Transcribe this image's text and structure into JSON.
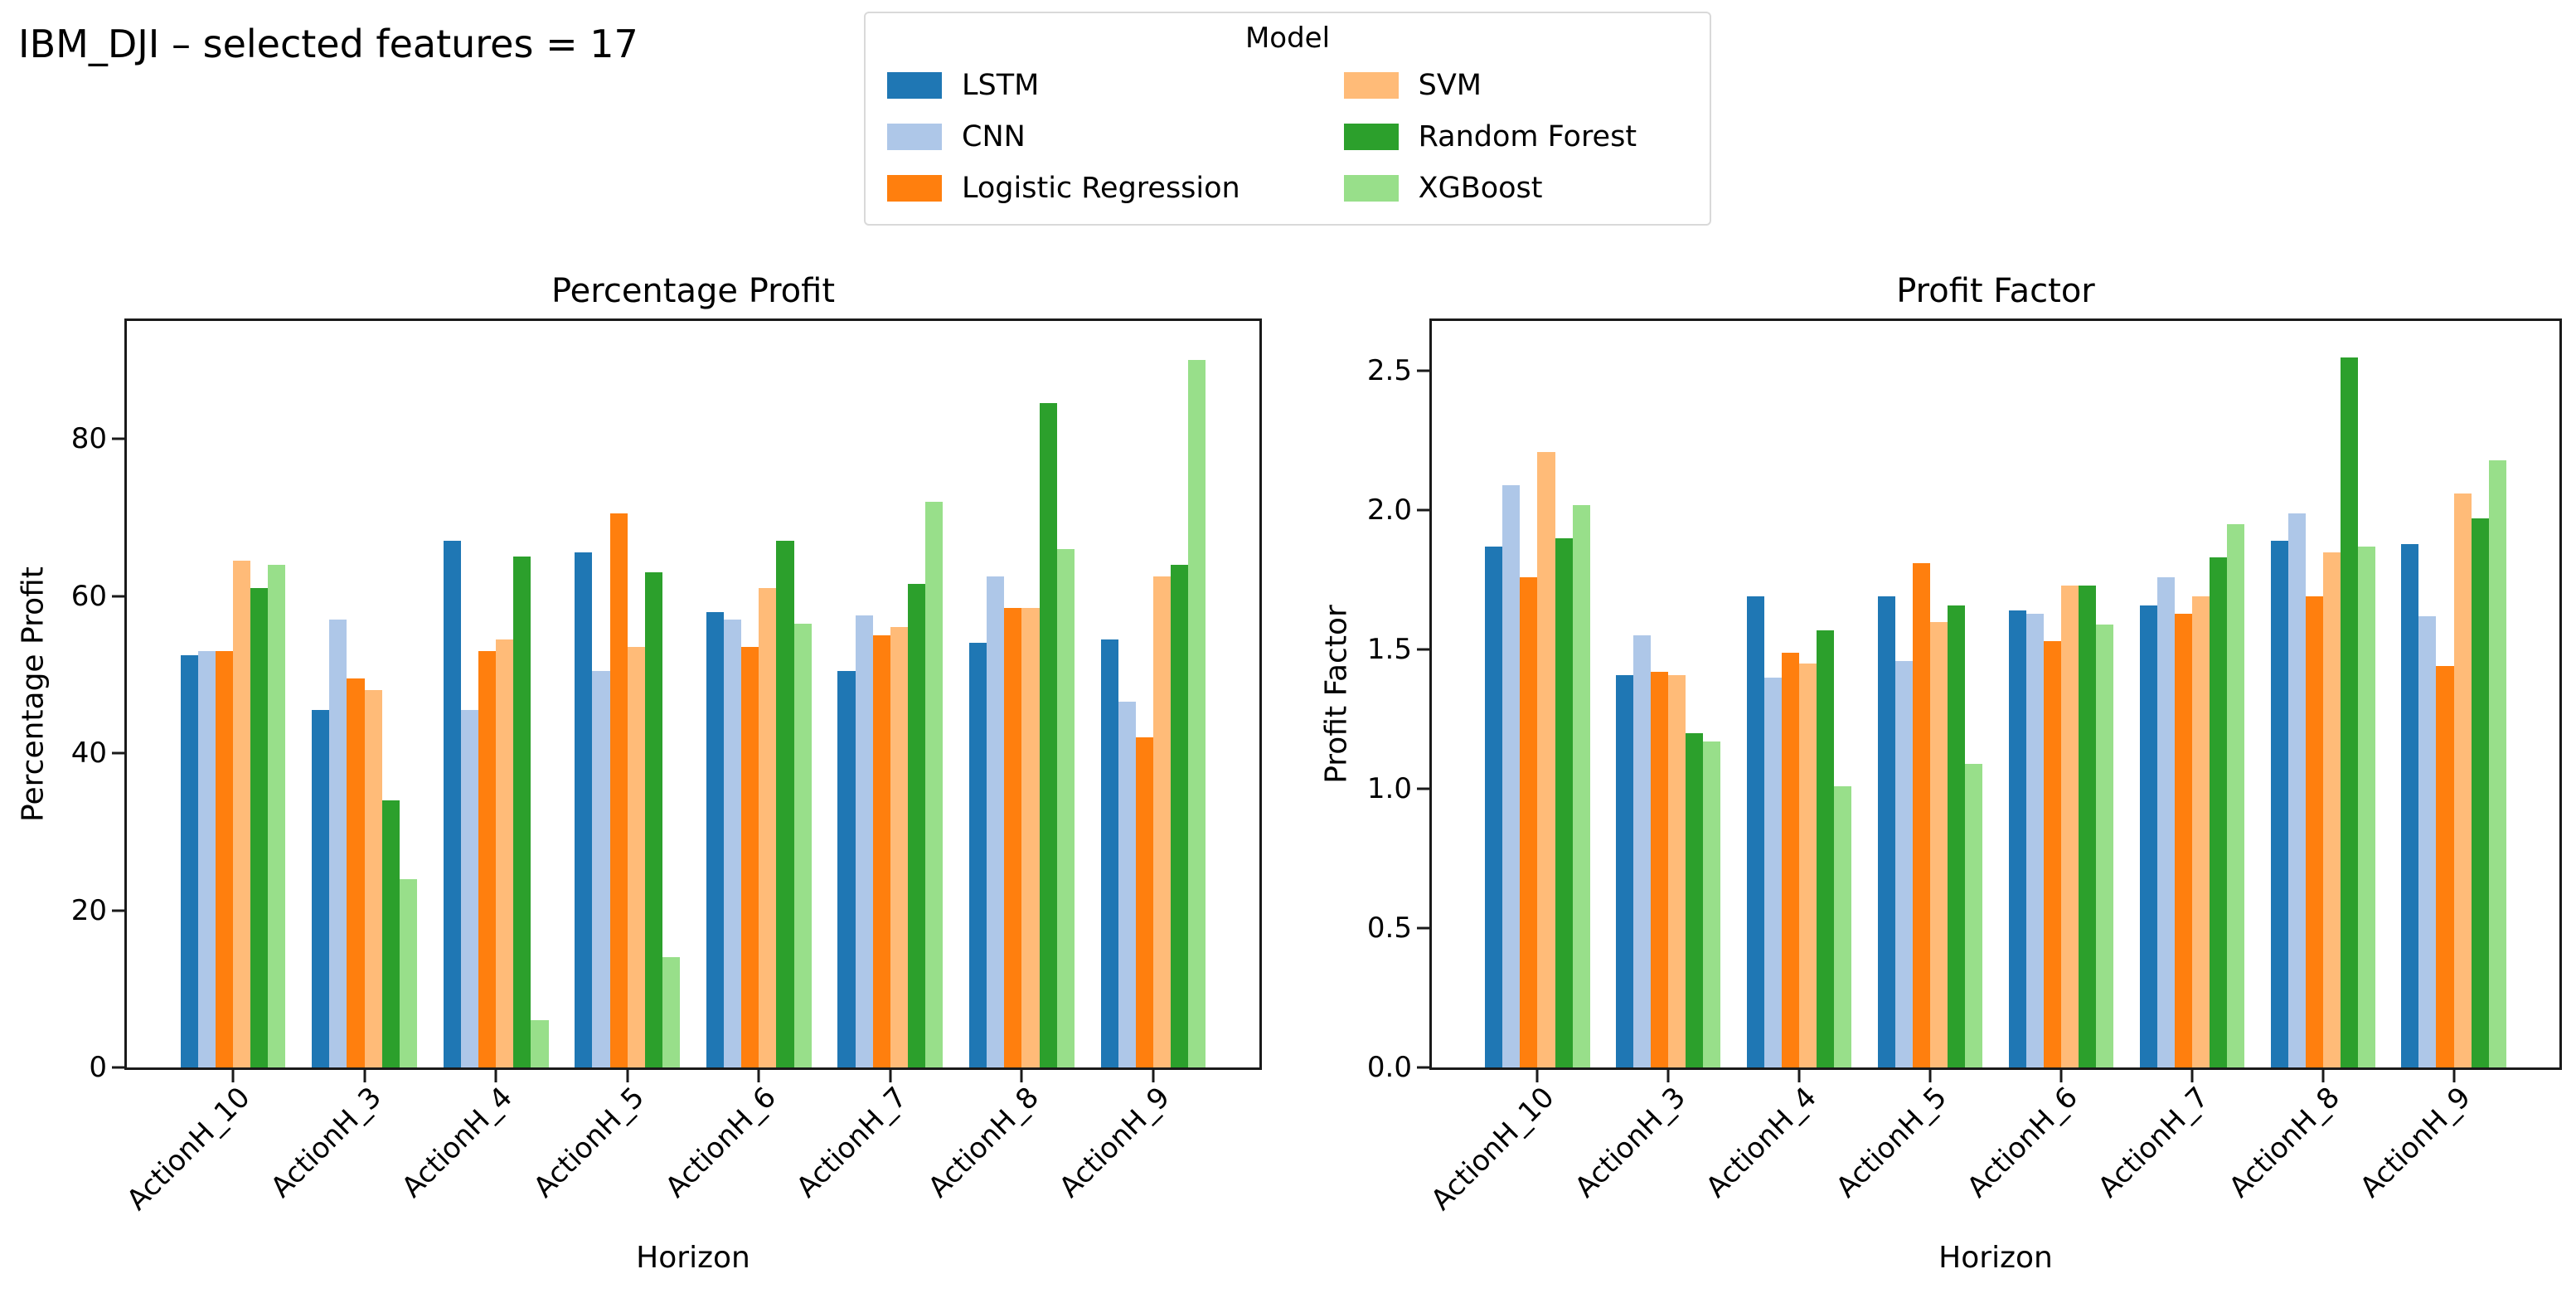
{
  "page_title": "IBM_DJI – selected features = 17",
  "legend": {
    "title": "Model",
    "entries": [
      {
        "label": "LSTM",
        "color": "#1f77b4"
      },
      {
        "label": "CNN",
        "color": "#aec7e8"
      },
      {
        "label": "Logistic Regression",
        "color": "#ff7f0e"
      },
      {
        "label": "SVM",
        "color": "#ffbb78"
      },
      {
        "label": "Random Forest",
        "color": "#2ca02c"
      },
      {
        "label": "XGBoost",
        "color": "#98df8a"
      }
    ]
  },
  "chart_data": [
    {
      "type": "bar",
      "title": "Percentage Profit",
      "xlabel": "Horizon",
      "ylabel": "Percentage Profit",
      "categories": [
        "ActionH_10",
        "ActionH_3",
        "ActionH_4",
        "ActionH_5",
        "ActionH_6",
        "ActionH_7",
        "ActionH_8",
        "ActionH_9"
      ],
      "series": [
        {
          "name": "LSTM",
          "color": "#1f77b4",
          "values": [
            52.5,
            45.5,
            67,
            65.5,
            58,
            50.5,
            54,
            54.5
          ]
        },
        {
          "name": "CNN",
          "color": "#aec7e8",
          "values": [
            53,
            57,
            45.5,
            50.5,
            57,
            57.5,
            62.5,
            46.5
          ]
        },
        {
          "name": "Logistic Regression",
          "color": "#ff7f0e",
          "values": [
            53,
            49.5,
            53,
            70.5,
            53.5,
            55,
            58.5,
            42
          ]
        },
        {
          "name": "SVM",
          "color": "#ffbb78",
          "values": [
            64.5,
            48,
            54.5,
            53.5,
            61,
            56,
            58.5,
            62.5
          ]
        },
        {
          "name": "Random Forest",
          "color": "#2ca02c",
          "values": [
            61,
            34,
            65,
            63,
            67,
            61.5,
            84.5,
            64
          ]
        },
        {
          "name": "XGBoost",
          "color": "#98df8a",
          "values": [
            64,
            24,
            6,
            14,
            56.5,
            72,
            66,
            90
          ]
        }
      ],
      "ylim": [
        0,
        95
      ],
      "yticks": [
        "0",
        "20",
        "40",
        "60",
        "80"
      ],
      "ytick_values": [
        0,
        20,
        40,
        60,
        80
      ],
      "grid": false,
      "legend_position": "figure upper center"
    },
    {
      "type": "bar",
      "title": "Profit Factor",
      "xlabel": "Horizon",
      "ylabel": "Profit Factor",
      "categories": [
        "ActionH_10",
        "ActionH_3",
        "ActionH_4",
        "ActionH_5",
        "ActionH_6",
        "ActionH_7",
        "ActionH_8",
        "ActionH_9"
      ],
      "series": [
        {
          "name": "LSTM",
          "color": "#1f77b4",
          "values": [
            1.87,
            1.41,
            1.69,
            1.69,
            1.64,
            1.66,
            1.89,
            1.88
          ]
        },
        {
          "name": "CNN",
          "color": "#aec7e8",
          "values": [
            2.09,
            1.55,
            1.4,
            1.46,
            1.63,
            1.76,
            1.99,
            1.62
          ]
        },
        {
          "name": "Logistic Regression",
          "color": "#ff7f0e",
          "values": [
            1.76,
            1.42,
            1.49,
            1.81,
            1.53,
            1.63,
            1.69,
            1.44
          ]
        },
        {
          "name": "SVM",
          "color": "#ffbb78",
          "values": [
            2.21,
            1.41,
            1.45,
            1.6,
            1.73,
            1.69,
            1.85,
            2.06
          ]
        },
        {
          "name": "Random Forest",
          "color": "#2ca02c",
          "values": [
            1.9,
            1.2,
            1.57,
            1.66,
            1.73,
            1.83,
            2.55,
            1.97
          ]
        },
        {
          "name": "XGBoost",
          "color": "#98df8a",
          "values": [
            2.02,
            1.17,
            1.01,
            1.09,
            1.59,
            1.95,
            1.87,
            2.18
          ]
        }
      ],
      "ylim": [
        0,
        2.68
      ],
      "yticks": [
        "0.0",
        "0.5",
        "1.0",
        "1.5",
        "2.0",
        "2.5"
      ],
      "ytick_values": [
        0,
        0.5,
        1.0,
        1.5,
        2.0,
        2.5
      ],
      "grid": false,
      "legend_position": "figure upper center"
    }
  ]
}
